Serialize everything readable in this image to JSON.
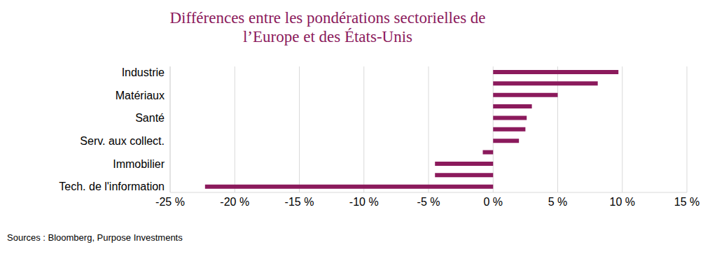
{
  "chart_data": {
    "type": "bar",
    "title": "Différences entre les pondérations sectorielles de l’Europe et des États-Unis",
    "source": "Sources : Bloomberg, Purpose Investments",
    "orientation": "horizontal",
    "categories": [
      "Industrie",
      null,
      "Matériaux",
      null,
      "Santé",
      null,
      "Serv. aux collect.",
      null,
      "Immobilier",
      null,
      "Tech. de l'information"
    ],
    "values": [
      9.7,
      8.1,
      5.0,
      3.0,
      2.6,
      2.5,
      2.0,
      -0.8,
      -4.5,
      -4.5,
      -22.3
    ],
    "color": "#8b1a5c",
    "xlim": [
      -25,
      15
    ],
    "xticks": [
      {
        "value": -25,
        "label": "-25 %"
      },
      {
        "value": -20,
        "label": "-20 %"
      },
      {
        "value": -15,
        "label": "-15 %"
      },
      {
        "value": -10,
        "label": "-10 %"
      },
      {
        "value": -5,
        "label": "-5 %"
      },
      {
        "value": 0,
        "label": "0 %"
      },
      {
        "value": 5,
        "label": "5 %"
      },
      {
        "value": 10,
        "label": "10 %"
      },
      {
        "value": 15,
        "label": "15 %"
      }
    ],
    "grid": true
  }
}
